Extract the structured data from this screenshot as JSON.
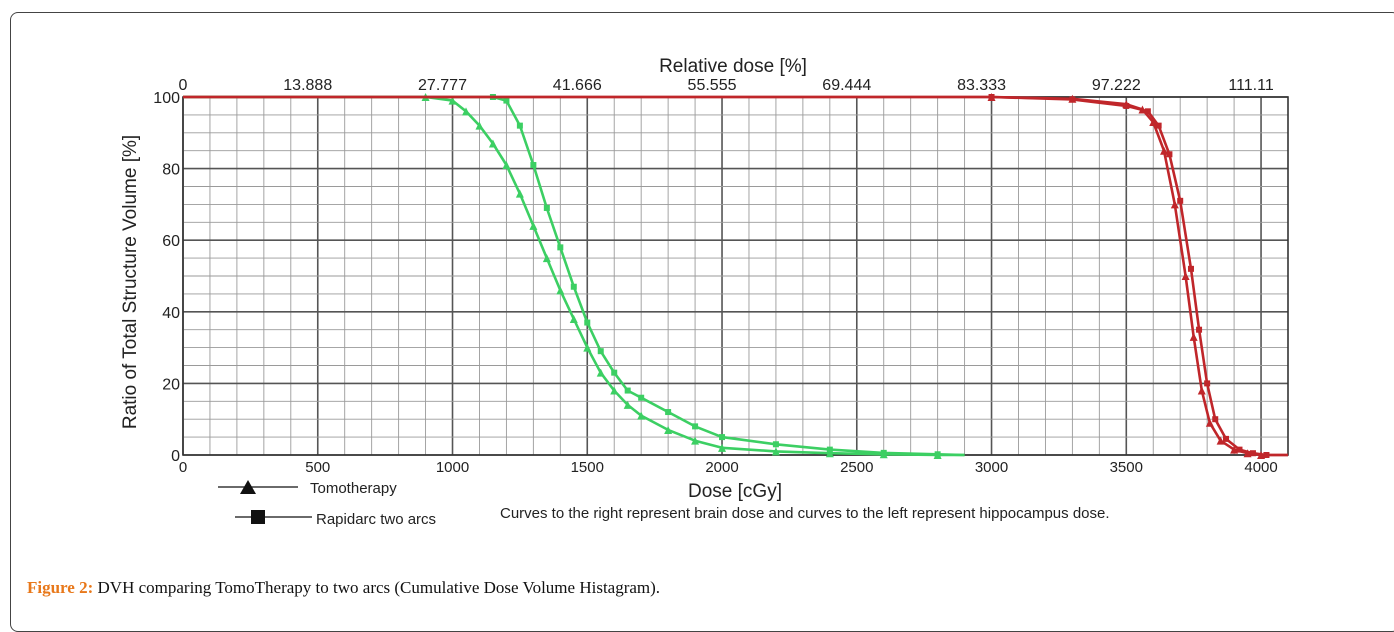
{
  "caption": {
    "label": "Figure 2:",
    "text": " DVH comparing TomoTherapy to two arcs (Cumulative Dose Volume Histagram)."
  },
  "chart_data": {
    "type": "line",
    "title": "",
    "xlabel": "Dose [cGy]",
    "ylabel": "Ratio of Total Structure Volume [%]",
    "top_axis_label": "Relative dose [%]",
    "xlim": [
      0,
      4100
    ],
    "ylim": [
      0,
      100
    ],
    "x_ticks": [
      "0",
      "500",
      "1000",
      "1500",
      "2000",
      "2500",
      "3000",
      "3500",
      "4000"
    ],
    "y_ticks": [
      "0",
      "20",
      "40",
      "60",
      "80",
      "100"
    ],
    "top_ticks": [
      "0",
      "13.888",
      "27.777",
      "41.666",
      "55.555",
      "69.444",
      "83.333",
      "97.222",
      "111.11"
    ],
    "grid": true,
    "legend": [
      {
        "marker": "triangle",
        "label": "Tomotherapy"
      },
      {
        "marker": "square",
        "label": "Rapidarc two arcs"
      }
    ],
    "annotation": "Curves to the right represent brain dose and curves to the left represent hippocampus dose.",
    "colors": {
      "hippocampus": "#3ccf63",
      "brain": "#c0262a"
    },
    "series": [
      {
        "color": "#3ccf63",
        "x": [
          0,
          900,
          1000,
          1050,
          1100,
          1150,
          1200,
          1250,
          1300,
          1350,
          1400,
          1450,
          1500,
          1550,
          1600,
          1650,
          1700,
          1800,
          1900,
          2000,
          2200,
          2400,
          2600,
          2800,
          2900
        ],
        "y": [
          100,
          100,
          99,
          96,
          92,
          87,
          81,
          73,
          64,
          55,
          46,
          38,
          30,
          23,
          18,
          14,
          11,
          7,
          4,
          2,
          1,
          0.5,
          0.2,
          0,
          0
        ]
      },
      {
        "color": "#3ccf63",
        "x": [
          0,
          1150,
          1200,
          1250,
          1300,
          1350,
          1400,
          1450,
          1500,
          1550,
          1600,
          1650,
          1700,
          1800,
          1900,
          2000,
          2200,
          2400,
          2600,
          2800,
          2900
        ],
        "y": [
          100,
          100,
          99,
          92,
          81,
          69,
          58,
          47,
          37,
          29,
          23,
          18,
          16,
          12,
          8,
          5,
          3,
          1.5,
          0.6,
          0.2,
          0
        ]
      },
      {
        "color": "#c0262a",
        "x": [
          0,
          3000,
          3300,
          3500,
          3560,
          3600,
          3640,
          3680,
          3720,
          3750,
          3780,
          3810,
          3850,
          3900,
          3950,
          4000,
          4100
        ],
        "y": [
          100,
          100,
          99.5,
          98,
          96.5,
          93,
          85,
          70,
          50,
          33,
          18,
          9,
          4,
          1.5,
          0.5,
          0,
          0
        ]
      },
      {
        "color": "#c0262a",
        "x": [
          0,
          3000,
          3300,
          3500,
          3580,
          3620,
          3660,
          3700,
          3740,
          3770,
          3800,
          3830,
          3870,
          3920,
          3970,
          4020,
          4100
        ],
        "y": [
          100,
          100,
          99.3,
          97.5,
          96,
          92,
          84,
          71,
          52,
          35,
          20,
          10,
          4.5,
          1.5,
          0.5,
          0,
          0
        ]
      }
    ]
  }
}
